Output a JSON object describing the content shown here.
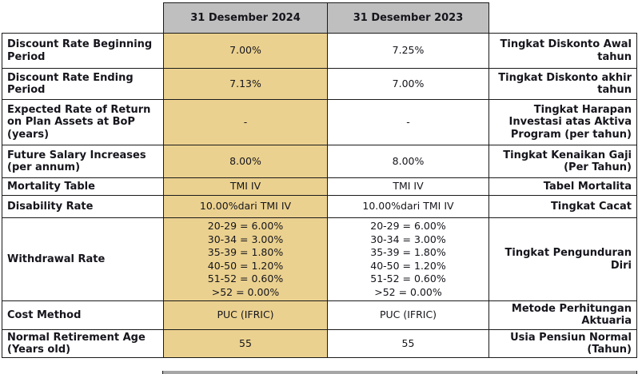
{
  "header": {
    "col_2024": "31 Desember 2024",
    "col_2023": "31 Desember 2023"
  },
  "colors": {
    "header_bg": "#bfbfbf",
    "col_2024_bg": "#ebd18f",
    "col_2023_bg": "#ffffff",
    "border": "#1a1a1a",
    "text": "#15151c",
    "bottom_strip": "#a6a6a6"
  },
  "rows": [
    {
      "label_en": "Discount Rate Beginning Period",
      "v2024": "7.00%",
      "v2023": "7.25%",
      "label_id": "Tingkat Diskonto Awal tahun"
    },
    {
      "label_en": "Discount Rate Ending Period",
      "v2024": "7.13%",
      "v2023": "7.00%",
      "label_id": "Tingkat Diskonto akhir tahun"
    },
    {
      "label_en": "Expected Rate of Return on Plan Assets at BoP (years)",
      "v2024": "-",
      "v2023": "-",
      "label_id": "Tingkat Harapan Investasi atas Aktiva Program (per tahun)"
    },
    {
      "label_en": "Future Salary Increases (per annum)",
      "v2024": "8.00%",
      "v2023": "8.00%",
      "label_id": "Tingkat Kenaikan Gaji (Per Tahun)"
    },
    {
      "label_en": "Mortality Table",
      "v2024": "TMI IV",
      "v2023": "TMI IV",
      "label_id": "Tabel Mortalita"
    },
    {
      "label_en": "Disability Rate",
      "v2024": "10.00%dari TMI IV",
      "v2023": "10.00%dari TMI IV",
      "label_id": "Tingkat Cacat"
    },
    {
      "label_en": "Withdrawal Rate",
      "v2024": "20-29 = 6.00%\n30-34 = 3.00%\n35-39 = 1.80%\n40-50 = 1.20%\n51-52 = 0.60%\n>52 = 0.00%",
      "v2023": "20-29 = 6.00%\n30-34 = 3.00%\n35-39 = 1.80%\n40-50 = 1.20%\n51-52 = 0.60%\n>52 = 0.00%",
      "label_id": "Tingkat Pengunduran Diri"
    },
    {
      "label_en": "Cost Method",
      "v2024": "PUC (IFRIC)",
      "v2023": "PUC (IFRIC)",
      "label_id": "Metode Perhitungan Aktuaria"
    },
    {
      "label_en": "Normal Retirement Age (Years old)",
      "v2024": "55",
      "v2023": "55",
      "label_id": "Usia Pensiun Normal (Tahun)"
    }
  ]
}
